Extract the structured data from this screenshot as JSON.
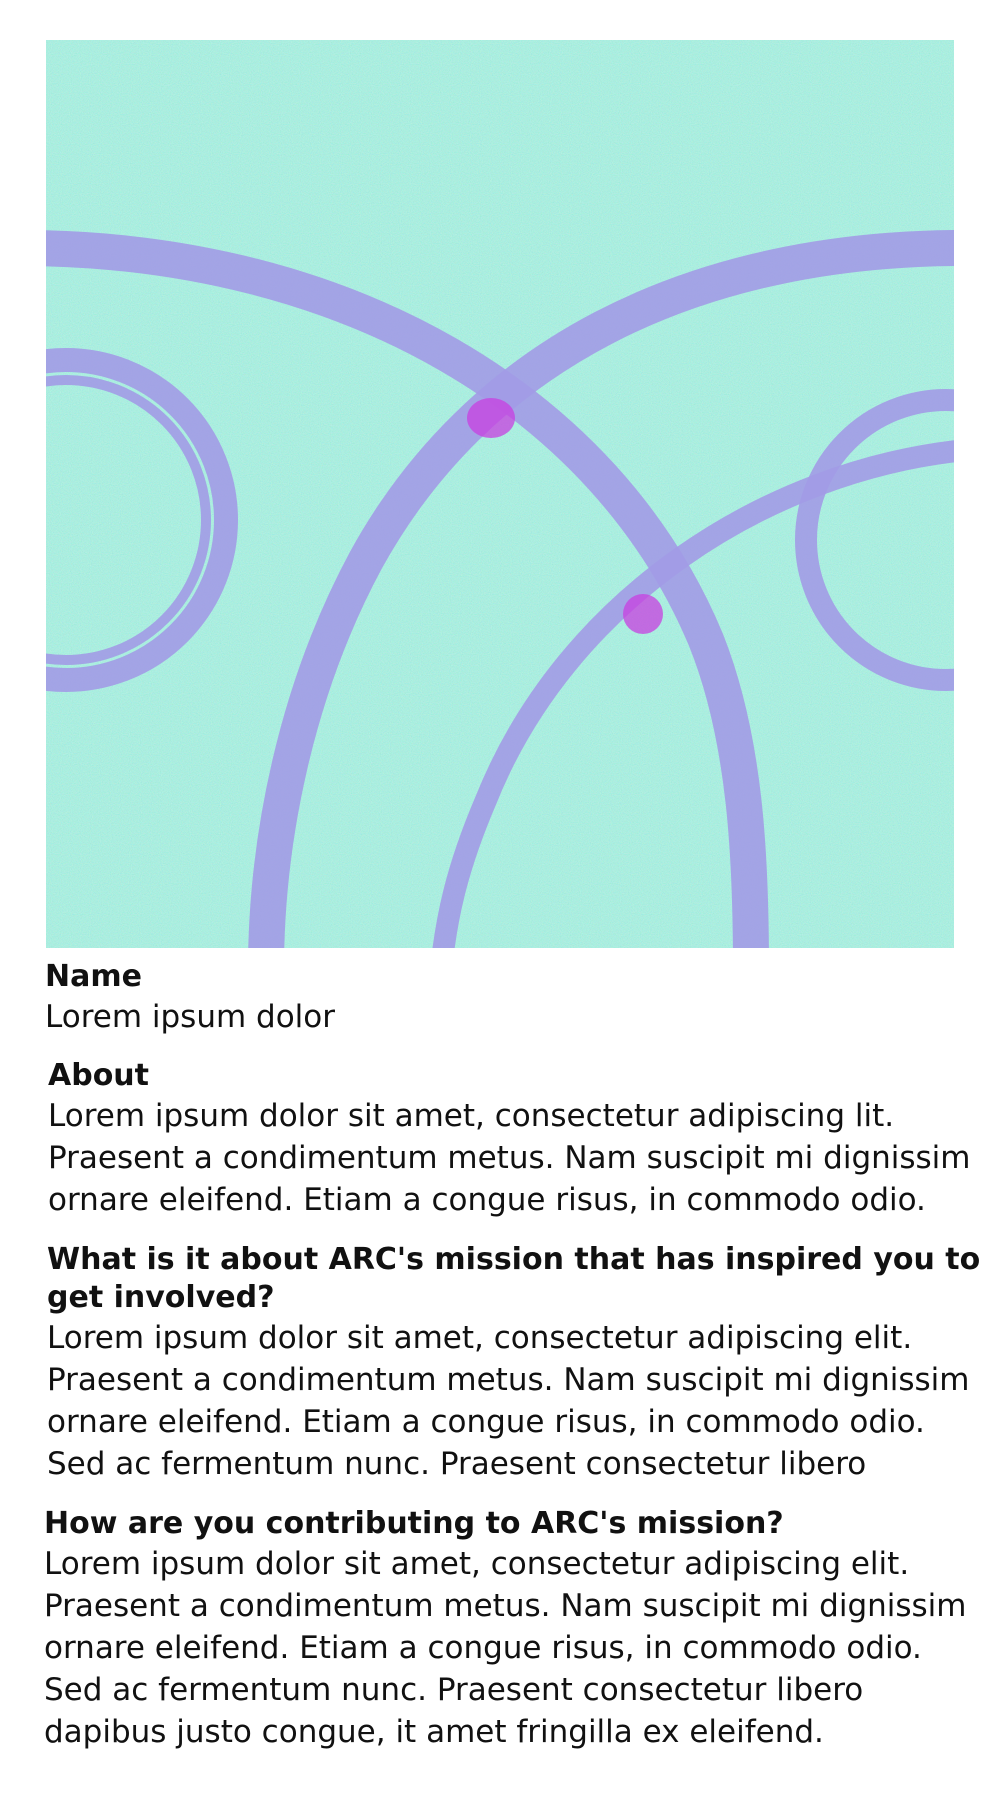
{
  "profile": {
    "name_label": "Name",
    "name_value": "Lorem ipsum dolor",
    "about_label": "About",
    "about_value": "Lorem ipsum dolor sit amet, consectetur adipiscing  lit. Praesent a condimentum metus. Nam suscipit mi dignissim ornare eleifend. Etiam a congue risus, in commodo odio.",
    "mission_question": "What is it about ARC's mission that has inspired you to get involved?",
    "mission_answer": "Lorem ipsum dolor sit amet, consectetur adipiscing elit. Praesent a condimentum metus. Nam suscipit mi dignissim ornare eleifend. Etiam a congue risus, in commodo odio. Sed ac fermentum nunc. Praesent consectetur libero",
    "contribution_question": "How are you contributing to ARC's mission?",
    "contribution_answer": "Lorem ipsum dolor sit amet, consectetur adipiscing elit. Praesent a condimentum metus. Nam suscipit mi dignissim ornare eleifend. Etiam a congue risus, in commodo odio. Sed ac fermentum nunc. Praesent consectetur libero dapibus justo congue, it amet fringilla ex eleifend."
  },
  "colors": {
    "hero_background": "#7fe8d0",
    "hero_rings": "#a29be6",
    "ring_overlap": "#c83fe0"
  }
}
